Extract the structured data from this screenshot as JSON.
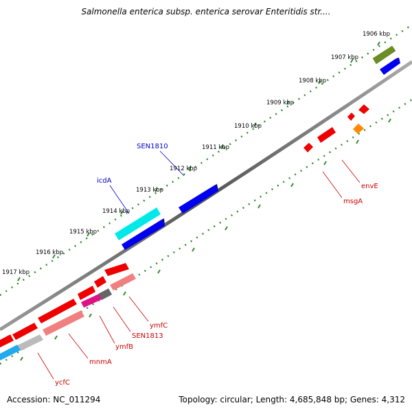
{
  "title": "Salmonella enterica subsp. enterica serovar Enteritidis str....",
  "footer": {
    "accession": "Accession: NC_011294",
    "topology": "Topology: circular; Length: 4,685,848 bp; Genes: 4,312"
  },
  "ticks": [
    "1906 kbp",
    "1907 kbp",
    "1908 kbp",
    "1909 kbp",
    "1910 kbp",
    "1911 kbp",
    "1912 kbp",
    "1913 kbp",
    "1914 kbp",
    "1915 kbp",
    "1916 kbp",
    "1917 kbp"
  ],
  "gene_labels_top": [
    "SEN1810",
    "icdA"
  ],
  "gene_labels_bottom": [
    "envE",
    "msgA",
    "ymfC",
    "SEN1813",
    "ymfB",
    "mnmA",
    "ycfC"
  ],
  "colors": {
    "backbone": "#7a7a7a",
    "tick": "#2e8b2e",
    "label_top": "#0000cc",
    "label_bottom": "#cc0000",
    "red": "#ee0000",
    "blue": "#0000ee",
    "cyan": "#00e8e8",
    "olive": "#6b8e23",
    "orange": "#ff8800",
    "pink": "#f08080",
    "grey": "#bbbbbb",
    "darkgrey": "#666666",
    "magenta": "#dd1188",
    "skyblue": "#22aaee"
  }
}
